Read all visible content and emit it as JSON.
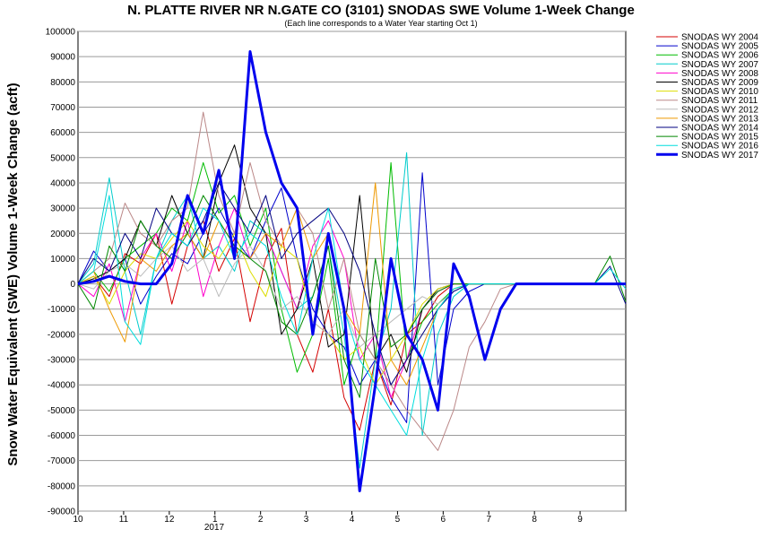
{
  "chart_data": {
    "type": "line",
    "title": "N. PLATTE RIVER NR N.GATE CO (3101) SNODAS SWE Volume 1-Week Change",
    "subtitle": "(Each line corresponds to a Water Year starting Oct 1)",
    "ylabel": "Snow Water Equivalent (SWE) Volume 1-Week Change (acft)",
    "xlabel": "",
    "x_ticks": [
      "10",
      "11",
      "12",
      "1",
      "2",
      "3",
      "4",
      "5",
      "6",
      "7",
      "8",
      "9"
    ],
    "x_sublabel": "2017",
    "ylim": [
      -90000,
      100000
    ],
    "y_ticks": [
      100000,
      90000,
      80000,
      70000,
      60000,
      50000,
      40000,
      30000,
      20000,
      10000,
      0,
      -10000,
      -20000,
      -30000,
      -40000,
      -50000,
      -60000,
      -70000,
      -80000,
      -90000
    ],
    "grid": true,
    "legend_position": "right",
    "series": [
      {
        "name": "SNODAS WY 2004",
        "color": "#d40000",
        "values": [
          0,
          3000,
          -5000,
          12000,
          8000,
          20000,
          -8000,
          15000,
          25000,
          5000,
          18000,
          -15000,
          10000,
          22000,
          -20000,
          -35000,
          -10000,
          -45000,
          -58000,
          -30000,
          -48000,
          -20000,
          -15000,
          -5000,
          0,
          0,
          0,
          0,
          0,
          0,
          0,
          0,
          0,
          0,
          0,
          0
        ]
      },
      {
        "name": "SNODAS WY 2005",
        "color": "#0000cc",
        "values": [
          0,
          13000,
          5000,
          10000,
          -8000,
          3000,
          12000,
          8000,
          20000,
          30000,
          18000,
          10000,
          25000,
          38000,
          10000,
          -10000,
          -20000,
          -25000,
          -40000,
          -30000,
          -45000,
          -55000,
          44000,
          -40000,
          -10000,
          -3000,
          0,
          0,
          0,
          0,
          0,
          0,
          0,
          0,
          0,
          0
        ]
      },
      {
        "name": "SNODAS WY 2006",
        "color": "#00bb00",
        "values": [
          0,
          5000,
          -3000,
          10000,
          15000,
          20000,
          30000,
          25000,
          48000,
          28000,
          35000,
          15000,
          30000,
          -10000,
          -35000,
          -20000,
          10000,
          -40000,
          -20000,
          -30000,
          48000,
          -30000,
          -15000,
          -8000,
          -2000,
          0,
          0,
          0,
          0,
          0,
          0,
          0,
          0,
          0,
          0,
          0
        ]
      },
      {
        "name": "SNODAS WY 2007",
        "color": "#00cccc",
        "values": [
          0,
          8000,
          42000,
          5000,
          -20000,
          10000,
          25000,
          35000,
          10000,
          15000,
          5000,
          25000,
          20000,
          5000,
          -10000,
          -5000,
          15000,
          -20000,
          -73000,
          -30000,
          -10000,
          52000,
          -60000,
          -20000,
          -5000,
          0,
          0,
          0,
          0,
          0,
          0,
          0,
          0,
          0,
          0,
          0
        ]
      },
      {
        "name": "SNODAS WY 2008",
        "color": "#ff00cc",
        "values": [
          0,
          -5000,
          8000,
          -15000,
          10000,
          20000,
          5000,
          25000,
          -5000,
          15000,
          30000,
          10000,
          20000,
          5000,
          -10000,
          15000,
          25000,
          10000,
          -30000,
          -20000,
          -45000,
          -30000,
          -10000,
          -3000,
          0,
          0,
          0,
          0,
          0,
          0,
          0,
          0,
          0,
          0,
          0,
          0
        ]
      },
      {
        "name": "SNODAS WY 2009",
        "color": "#000000",
        "values": [
          0,
          2000,
          5000,
          10000,
          25000,
          15000,
          35000,
          20000,
          10000,
          40000,
          55000,
          30000,
          20000,
          -20000,
          -10000,
          10000,
          -25000,
          -20000,
          35000,
          -30000,
          -20000,
          -35000,
          -10000,
          -2000,
          0,
          0,
          0,
          0,
          0,
          0,
          0,
          0,
          0,
          0,
          0,
          0
        ]
      },
      {
        "name": "SNODAS WY 2010",
        "color": "#dddd00",
        "values": [
          0,
          3000,
          -8000,
          5000,
          12000,
          10000,
          18000,
          25000,
          15000,
          10000,
          20000,
          5000,
          -5000,
          15000,
          10000,
          -15000,
          -20000,
          -30000,
          -25000,
          -40000,
          -30000,
          -20000,
          -8000,
          -2000,
          0,
          0,
          0,
          0,
          0,
          0,
          0,
          0,
          0,
          0,
          0,
          0
        ]
      },
      {
        "name": "SNODAS WY 2011",
        "color": "#bb8888",
        "values": [
          0,
          5000,
          10000,
          32000,
          20000,
          15000,
          25000,
          30000,
          68000,
          35000,
          20000,
          48000,
          25000,
          15000,
          30000,
          20000,
          -10000,
          10000,
          -20000,
          -30000,
          -40000,
          -50000,
          -58000,
          -66000,
          -50000,
          -25000,
          -15000,
          -2000,
          0,
          0,
          0,
          0,
          0,
          0,
          0,
          0
        ]
      },
      {
        "name": "SNODAS WY 2012",
        "color": "#bbbbbb",
        "values": [
          0,
          -2000,
          5000,
          8000,
          3000,
          10000,
          15000,
          5000,
          10000,
          -5000,
          8000,
          15000,
          5000,
          -10000,
          -5000,
          -15000,
          -20000,
          -10000,
          -25000,
          -20000,
          -15000,
          -10000,
          -5000,
          -8000,
          -3000,
          0,
          0,
          0,
          0,
          0,
          0,
          0,
          0,
          0,
          0,
          0
        ]
      },
      {
        "name": "SNODAS WY 2013",
        "color": "#ee9900",
        "values": [
          0,
          5000,
          -10000,
          -23000,
          10000,
          5000,
          15000,
          20000,
          10000,
          25000,
          15000,
          10000,
          20000,
          15000,
          30000,
          10000,
          20000,
          -10000,
          -20000,
          40000,
          -30000,
          -40000,
          -25000,
          -10000,
          -2000,
          0,
          0,
          0,
          0,
          0,
          0,
          0,
          0,
          0,
          0,
          0
        ]
      },
      {
        "name": "SNODAS WY 2014",
        "color": "#000080",
        "values": [
          0,
          10000,
          5000,
          20000,
          10000,
          30000,
          20000,
          15000,
          25000,
          40000,
          30000,
          20000,
          35000,
          10000,
          20000,
          25000,
          30000,
          20000,
          5000,
          -20000,
          -40000,
          -30000,
          -20000,
          -10000,
          -3000,
          0,
          0,
          0,
          0,
          0,
          0,
          0,
          0,
          0,
          7000,
          -8000
        ]
      },
      {
        "name": "SNODAS WY 2015",
        "color": "#008800",
        "values": [
          0,
          -10000,
          15000,
          5000,
          25000,
          15000,
          10000,
          20000,
          35000,
          25000,
          15000,
          10000,
          5000,
          -15000,
          -20000,
          -5000,
          15000,
          -30000,
          -45000,
          10000,
          -25000,
          -20000,
          -10000,
          -3000,
          0,
          0,
          0,
          0,
          0,
          0,
          0,
          0,
          0,
          0,
          11000,
          -7000
        ]
      },
      {
        "name": "SNODAS WY 2016",
        "color": "#00dddd",
        "values": [
          0,
          5000,
          35000,
          -15000,
          -24000,
          10000,
          20000,
          15000,
          30000,
          25000,
          10000,
          20000,
          15000,
          -5000,
          -20000,
          10000,
          30000,
          -10000,
          -30000,
          -40000,
          -50000,
          -60000,
          -30000,
          -10000,
          -2000,
          0,
          0,
          0,
          0,
          0,
          0,
          0,
          0,
          0,
          6000,
          -2000
        ]
      },
      {
        "name": "SNODAS WY 2017",
        "color": "#0000ee",
        "bold": true,
        "values": [
          0,
          1000,
          3000,
          1000,
          0,
          0,
          8000,
          35000,
          20000,
          45000,
          10000,
          92000,
          60000,
          40000,
          30000,
          -20000,
          20000,
          -10000,
          -82000,
          -40000,
          10000,
          -20000,
          -30000,
          -50000,
          8000,
          -5000,
          -30000,
          -10000,
          0,
          0,
          0,
          0,
          0,
          0,
          0,
          0
        ]
      }
    ]
  }
}
